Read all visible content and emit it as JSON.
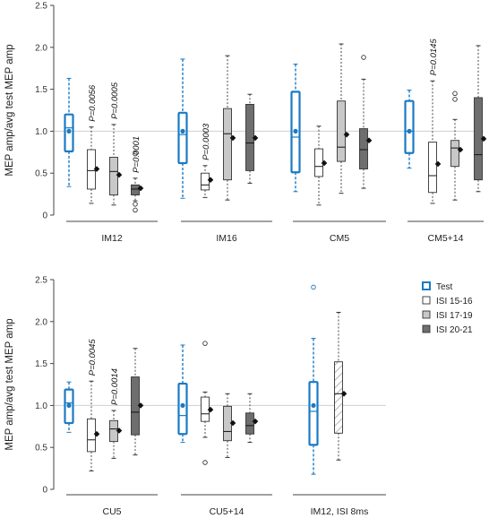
{
  "chart_data": [
    {
      "type": "box",
      "ylabel": "MEP amp/avg test MEP amp",
      "ylim": [
        0,
        2.5
      ],
      "yticks": [
        "0",
        "0.5",
        "1.0",
        "1.5",
        "2.0",
        "2.5"
      ],
      "reference_line": 1.0,
      "groups": [
        {
          "name": "IM12",
          "boxes": [
            {
              "cond": "test",
              "q1": 0.76,
              "median": 1.04,
              "q3": 1.2,
              "lo": 0.34,
              "hi": 1.63,
              "mean": 1.0,
              "outliers": []
            },
            {
              "cond": "isi1516",
              "q1": 0.31,
              "median": 0.53,
              "q3": 0.78,
              "lo": 0.14,
              "hi": 1.05,
              "mean": 0.55,
              "outliers": [],
              "p": "P=0.0056"
            },
            {
              "cond": "isi1719",
              "q1": 0.24,
              "median": 0.52,
              "q3": 0.69,
              "lo": 0.12,
              "hi": 1.08,
              "mean": 0.48,
              "outliers": [],
              "p": "P=0.0005"
            },
            {
              "cond": "isi2021",
              "q1": 0.24,
              "median": 0.31,
              "q3": 0.36,
              "lo": 0.17,
              "hi": 0.44,
              "mean": 0.32,
              "outliers": [
                0.73,
                0.13,
                0.06
              ],
              "p": "P=0.0001"
            }
          ]
        },
        {
          "name": "IM16",
          "boxes": [
            {
              "cond": "test",
              "q1": 0.62,
              "median": 0.96,
              "q3": 1.22,
              "lo": 0.2,
              "hi": 1.86,
              "mean": 1.0,
              "outliers": []
            },
            {
              "cond": "isi1516",
              "q1": 0.3,
              "median": 0.36,
              "q3": 0.5,
              "lo": 0.21,
              "hi": 0.59,
              "mean": 0.42,
              "outliers": [],
              "p": "P=0.0003"
            },
            {
              "cond": "isi1719",
              "q1": 0.42,
              "median": 0.97,
              "q3": 1.27,
              "lo": 0.18,
              "hi": 1.9,
              "mean": 0.92,
              "outliers": []
            },
            {
              "cond": "isi2021",
              "q1": 0.53,
              "median": 0.86,
              "q3": 1.32,
              "lo": 0.38,
              "hi": 1.44,
              "mean": 0.92,
              "outliers": []
            }
          ]
        },
        {
          "name": "CM5",
          "boxes": [
            {
              "cond": "test",
              "q1": 0.51,
              "median": 0.93,
              "q3": 1.47,
              "lo": 0.28,
              "hi": 1.8,
              "mean": 1.0,
              "outliers": []
            },
            {
              "cond": "isi1516",
              "q1": 0.46,
              "median": 0.58,
              "q3": 0.79,
              "lo": 0.12,
              "hi": 1.06,
              "mean": 0.62,
              "outliers": []
            },
            {
              "cond": "isi1719",
              "q1": 0.64,
              "median": 0.81,
              "q3": 1.36,
              "lo": 0.26,
              "hi": 2.04,
              "mean": 0.96,
              "outliers": []
            },
            {
              "cond": "isi2021",
              "q1": 0.55,
              "median": 0.78,
              "q3": 1.03,
              "lo": 0.32,
              "hi": 1.62,
              "mean": 0.89,
              "outliers": [
                1.88
              ]
            }
          ]
        },
        {
          "name": "CM5+14",
          "boxes": [
            {
              "cond": "test",
              "q1": 0.74,
              "median": 1.0,
              "q3": 1.36,
              "lo": 0.56,
              "hi": 1.49,
              "mean": 1.0,
              "outliers": []
            },
            {
              "cond": "isi1516",
              "q1": 0.27,
              "median": 0.47,
              "q3": 0.87,
              "lo": 0.14,
              "hi": 1.6,
              "mean": 0.61,
              "outliers": [],
              "p": "P=0.0145"
            },
            {
              "cond": "isi1719",
              "q1": 0.58,
              "median": 0.8,
              "q3": 0.89,
              "lo": 0.18,
              "hi": 1.14,
              "mean": 0.78,
              "outliers": [
                1.45,
                1.38
              ]
            },
            {
              "cond": "isi2021",
              "q1": 0.42,
              "median": 0.72,
              "q3": 1.4,
              "lo": 0.28,
              "hi": 2.02,
              "mean": 0.91,
              "outliers": []
            }
          ]
        }
      ]
    },
    {
      "type": "box",
      "ylabel": "MEP amp/avg test MEP amp",
      "ylim": [
        0,
        2.5
      ],
      "yticks": [
        "0",
        "0.5",
        "1.0",
        "1.5",
        "2.0",
        "2.5"
      ],
      "reference_line": 1.0,
      "groups": [
        {
          "name": "CU5",
          "boxes": [
            {
              "cond": "test",
              "q1": 0.79,
              "median": 1.03,
              "q3": 1.19,
              "lo": 0.68,
              "hi": 1.28,
              "mean": 1.0,
              "outliers": []
            },
            {
              "cond": "isi1516",
              "q1": 0.45,
              "median": 0.59,
              "q3": 0.84,
              "lo": 0.22,
              "hi": 1.29,
              "mean": 0.66,
              "outliers": [],
              "p": "P=0.0045"
            },
            {
              "cond": "isi1719",
              "q1": 0.57,
              "median": 0.72,
              "q3": 0.82,
              "lo": 0.37,
              "hi": 0.94,
              "mean": 0.7,
              "outliers": [],
              "p": "P=0.0014"
            },
            {
              "cond": "isi2021",
              "q1": 0.65,
              "median": 0.92,
              "q3": 1.34,
              "lo": 0.41,
              "hi": 1.68,
              "mean": 1.0,
              "outliers": []
            }
          ]
        },
        {
          "name": "CU5+14",
          "boxes": [
            {
              "cond": "test",
              "q1": 0.66,
              "median": 0.88,
              "q3": 1.26,
              "lo": 0.56,
              "hi": 1.72,
              "mean": 1.0,
              "outliers": []
            },
            {
              "cond": "isi1516",
              "q1": 0.81,
              "median": 0.9,
              "q3": 1.1,
              "lo": 0.62,
              "hi": 1.16,
              "mean": 0.95,
              "outliers": [
                1.74,
                0.32
              ]
            },
            {
              "cond": "isi1719",
              "q1": 0.58,
              "median": 0.69,
              "q3": 0.99,
              "lo": 0.38,
              "hi": 1.14,
              "mean": 0.79,
              "outliers": []
            },
            {
              "cond": "isi2021",
              "q1": 0.66,
              "median": 0.76,
              "q3": 0.91,
              "lo": 0.56,
              "hi": 1.14,
              "mean": 0.81,
              "outliers": []
            }
          ]
        },
        {
          "name": "IM12, ISI 8ms",
          "boxes": [
            {
              "cond": "test",
              "q1": 0.53,
              "median": 0.93,
              "q3": 1.28,
              "lo": 0.18,
              "hi": 1.8,
              "mean": 1.0,
              "outliers": [
                2.41
              ]
            },
            {
              "cond": "isi8",
              "q1": 0.67,
              "median": 1.14,
              "q3": 1.52,
              "lo": 0.35,
              "hi": 2.11,
              "mean": 1.14,
              "outliers": []
            }
          ]
        }
      ]
    }
  ],
  "legend": {
    "items": [
      {
        "cond": "test",
        "label": "Test"
      },
      {
        "cond": "isi1516",
        "label": "ISI 15-16"
      },
      {
        "cond": "isi1719",
        "label": "ISI 17-19"
      },
      {
        "cond": "isi2021",
        "label": "ISI 20-21"
      }
    ]
  },
  "colors": {
    "test": "#1a7ac4",
    "isi1516": "#ffffff",
    "isi1719": "#c8c8c8",
    "isi2021": "#6e6e6e",
    "isi8": "#ffffff",
    "reference_line": "#cfcfcf",
    "axis": "#444444"
  }
}
